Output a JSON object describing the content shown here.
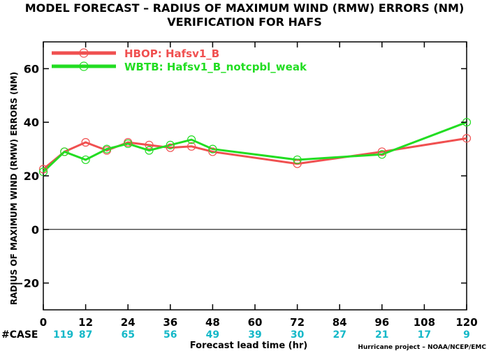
{
  "chart_data": {
    "type": "line",
    "title": "MODEL FORECAST – RADIUS OF MAXIMUM WIND (RMW) ERRORS (NM)",
    "subtitle": "VERIFICATION FOR HAFS",
    "xlabel": "Forecast lead time (hr)",
    "ylabel": "RADIUS OF MAXIMUM WIND (RMW) ERRORS (NM)",
    "xlim": [
      0,
      120
    ],
    "ylim": [
      -30,
      70
    ],
    "x_ticks": [
      0,
      12,
      24,
      36,
      48,
      60,
      72,
      84,
      96,
      108,
      120
    ],
    "y_ticks": [
      -20,
      0,
      20,
      40,
      60
    ],
    "y_tick_labels": [
      "−20",
      "0",
      "20",
      "40",
      "60"
    ],
    "zero_line": true,
    "legend_position": "top-left",
    "case_label": "#CASE",
    "case_label_color": "#14b8c8",
    "case_counts": [
      119,
      87,
      65,
      56,
      49,
      39,
      30,
      27,
      21,
      17,
      9
    ],
    "credit": "Hurricane project – NOAA/NCEP/EMC",
    "series": [
      {
        "name": "HBOP: Hafsv1_B",
        "color": "#f05050",
        "x": [
          0,
          6,
          12,
          18,
          24,
          30,
          36,
          42,
          48,
          72,
          96,
          120
        ],
        "y": [
          22.5,
          29,
          32.5,
          29.5,
          32.5,
          31.5,
          30.5,
          31,
          29,
          24.5,
          29,
          34
        ]
      },
      {
        "name": "WBTB: Hafsv1_B_notcpbl_weak",
        "color": "#22dd22",
        "x": [
          0,
          6,
          12,
          18,
          24,
          30,
          36,
          42,
          48,
          72,
          96,
          120
        ],
        "y": [
          21.5,
          29,
          26,
          30,
          32,
          29.5,
          31.5,
          33.5,
          30,
          26,
          28,
          40
        ]
      }
    ]
  }
}
